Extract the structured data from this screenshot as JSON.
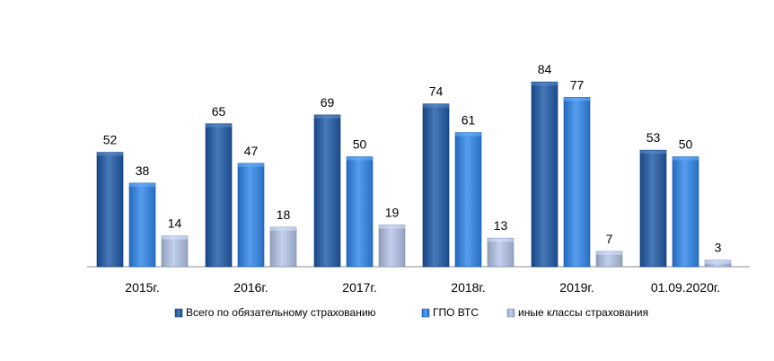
{
  "chart_data": {
    "type": "bar",
    "categories": [
      "2015г.",
      "2016г.",
      "2017г.",
      "2018г.",
      "2019г.",
      "01.09.2020г."
    ],
    "series": [
      {
        "name": "Всего по обязательному страхованию",
        "values": [
          52,
          65,
          69,
          74,
          84,
          53
        ],
        "color": "#2f5f9e"
      },
      {
        "name": "ГПО ВТС",
        "values": [
          38,
          47,
          50,
          61,
          77,
          50
        ],
        "color": "#3d83d6"
      },
      {
        "name": "иные классы страхования",
        "values": [
          14,
          18,
          19,
          13,
          7,
          3
        ],
        "color": "#a9b7d4"
      }
    ],
    "ylim": [
      0,
      100
    ],
    "show_data_labels": true,
    "grid": false,
    "legend_position": "bottom"
  }
}
